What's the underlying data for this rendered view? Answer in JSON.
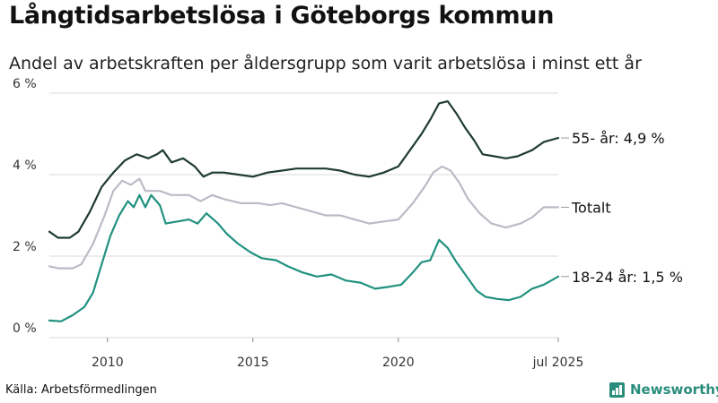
{
  "header": {
    "title": "Långtidsarbetslösa i Göteborgs kommun",
    "subtitle": "Andel av arbetskraften per åldersgrupp som varit arbetslösa i minst ett år"
  },
  "footer": {
    "source": "Källa: Arbetsförmedlingen",
    "brand": "Newsworthy"
  },
  "colors": {
    "older": "#1f3b33",
    "total": "#bdbac6",
    "young": "#21917f",
    "grid": "#d9d9d9",
    "brand": "#2a8d7c"
  },
  "chart_data": {
    "type": "line",
    "ylim": [
      0,
      6
    ],
    "yticks": [
      0,
      2,
      4,
      6
    ],
    "ytick_labels": [
      "0 %",
      "2 %",
      "4 %",
      "6 %"
    ],
    "xlim": [
      2008.0,
      2025.5
    ],
    "xticks": [
      2010,
      2015,
      2020,
      2025.5
    ],
    "xtick_labels": [
      "2010",
      "2015",
      "2020",
      "jul 2025"
    ],
    "grid": true,
    "series": [
      {
        "key": "older",
        "end_label": "55- år: 4,9 %",
        "points": [
          [
            2008.0,
            2.6
          ],
          [
            2008.3,
            2.45
          ],
          [
            2008.7,
            2.45
          ],
          [
            2009.0,
            2.6
          ],
          [
            2009.4,
            3.1
          ],
          [
            2009.8,
            3.7
          ],
          [
            2010.2,
            4.05
          ],
          [
            2010.6,
            4.35
          ],
          [
            2011.0,
            4.5
          ],
          [
            2011.4,
            4.4
          ],
          [
            2011.7,
            4.5
          ],
          [
            2011.9,
            4.6
          ],
          [
            2012.2,
            4.3
          ],
          [
            2012.6,
            4.4
          ],
          [
            2013.0,
            4.2
          ],
          [
            2013.3,
            3.95
          ],
          [
            2013.6,
            4.05
          ],
          [
            2014.0,
            4.05
          ],
          [
            2014.5,
            4.0
          ],
          [
            2015.0,
            3.95
          ],
          [
            2015.5,
            4.05
          ],
          [
            2016.0,
            4.1
          ],
          [
            2016.5,
            4.15
          ],
          [
            2017.0,
            4.15
          ],
          [
            2017.5,
            4.15
          ],
          [
            2018.0,
            4.1
          ],
          [
            2018.5,
            4.0
          ],
          [
            2019.0,
            3.95
          ],
          [
            2019.5,
            4.05
          ],
          [
            2020.0,
            4.2
          ],
          [
            2020.4,
            4.6
          ],
          [
            2020.8,
            5.0
          ],
          [
            2021.1,
            5.35
          ],
          [
            2021.4,
            5.75
          ],
          [
            2021.7,
            5.8
          ],
          [
            2022.0,
            5.5
          ],
          [
            2022.3,
            5.15
          ],
          [
            2022.6,
            4.85
          ],
          [
            2022.9,
            4.5
          ],
          [
            2023.3,
            4.45
          ],
          [
            2023.7,
            4.4
          ],
          [
            2024.1,
            4.45
          ],
          [
            2024.6,
            4.6
          ],
          [
            2025.0,
            4.8
          ],
          [
            2025.5,
            4.9
          ]
        ]
      },
      {
        "key": "total",
        "end_label": "Totalt",
        "points": [
          [
            2008.0,
            1.75
          ],
          [
            2008.3,
            1.7
          ],
          [
            2008.8,
            1.7
          ],
          [
            2009.1,
            1.8
          ],
          [
            2009.5,
            2.3
          ],
          [
            2009.9,
            3.0
          ],
          [
            2010.2,
            3.6
          ],
          [
            2010.5,
            3.85
          ],
          [
            2010.8,
            3.75
          ],
          [
            2011.1,
            3.9
          ],
          [
            2011.3,
            3.6
          ],
          [
            2011.8,
            3.6
          ],
          [
            2012.2,
            3.5
          ],
          [
            2012.8,
            3.5
          ],
          [
            2013.2,
            3.35
          ],
          [
            2013.6,
            3.5
          ],
          [
            2014.0,
            3.4
          ],
          [
            2014.6,
            3.3
          ],
          [
            2015.2,
            3.3
          ],
          [
            2015.6,
            3.25
          ],
          [
            2016.0,
            3.3
          ],
          [
            2016.5,
            3.2
          ],
          [
            2017.0,
            3.1
          ],
          [
            2017.5,
            3.0
          ],
          [
            2018.0,
            3.0
          ],
          [
            2018.5,
            2.9
          ],
          [
            2019.0,
            2.8
          ],
          [
            2019.5,
            2.85
          ],
          [
            2020.0,
            2.9
          ],
          [
            2020.5,
            3.3
          ],
          [
            2020.9,
            3.7
          ],
          [
            2021.2,
            4.05
          ],
          [
            2021.5,
            4.2
          ],
          [
            2021.8,
            4.1
          ],
          [
            2022.1,
            3.8
          ],
          [
            2022.4,
            3.4
          ],
          [
            2022.8,
            3.05
          ],
          [
            2023.2,
            2.8
          ],
          [
            2023.7,
            2.7
          ],
          [
            2024.2,
            2.8
          ],
          [
            2024.6,
            2.95
          ],
          [
            2025.0,
            3.2
          ],
          [
            2025.5,
            3.2
          ]
        ]
      },
      {
        "key": "young",
        "end_label": "18-24 år: 1,5 %",
        "points": [
          [
            2008.0,
            0.42
          ],
          [
            2008.4,
            0.4
          ],
          [
            2008.8,
            0.55
          ],
          [
            2009.2,
            0.75
          ],
          [
            2009.5,
            1.1
          ],
          [
            2009.8,
            1.8
          ],
          [
            2010.1,
            2.5
          ],
          [
            2010.4,
            3.0
          ],
          [
            2010.7,
            3.35
          ],
          [
            2010.9,
            3.2
          ],
          [
            2011.1,
            3.5
          ],
          [
            2011.3,
            3.2
          ],
          [
            2011.5,
            3.5
          ],
          [
            2011.8,
            3.25
          ],
          [
            2012.0,
            2.8
          ],
          [
            2012.4,
            2.85
          ],
          [
            2012.8,
            2.9
          ],
          [
            2013.1,
            2.8
          ],
          [
            2013.4,
            3.05
          ],
          [
            2013.8,
            2.8
          ],
          [
            2014.1,
            2.55
          ],
          [
            2014.5,
            2.3
          ],
          [
            2014.9,
            2.1
          ],
          [
            2015.3,
            1.95
          ],
          [
            2015.8,
            1.9
          ],
          [
            2016.2,
            1.75
          ],
          [
            2016.7,
            1.6
          ],
          [
            2017.2,
            1.5
          ],
          [
            2017.7,
            1.55
          ],
          [
            2018.2,
            1.4
          ],
          [
            2018.7,
            1.35
          ],
          [
            2019.2,
            1.2
          ],
          [
            2019.7,
            1.25
          ],
          [
            2020.1,
            1.3
          ],
          [
            2020.5,
            1.6
          ],
          [
            2020.8,
            1.85
          ],
          [
            2021.1,
            1.9
          ],
          [
            2021.4,
            2.4
          ],
          [
            2021.7,
            2.2
          ],
          [
            2022.0,
            1.85
          ],
          [
            2022.4,
            1.45
          ],
          [
            2022.7,
            1.15
          ],
          [
            2023.0,
            1.0
          ],
          [
            2023.4,
            0.95
          ],
          [
            2023.8,
            0.92
          ],
          [
            2024.2,
            1.0
          ],
          [
            2024.6,
            1.2
          ],
          [
            2025.0,
            1.3
          ],
          [
            2025.5,
            1.5
          ]
        ]
      }
    ]
  }
}
